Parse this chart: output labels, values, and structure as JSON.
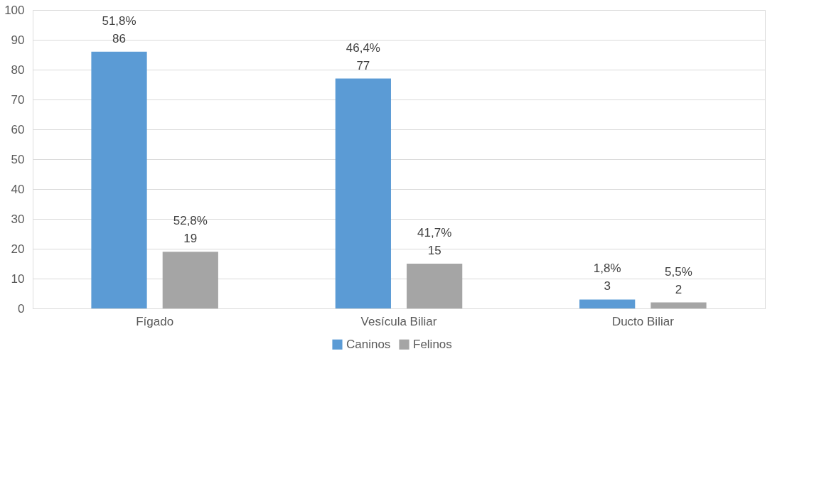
{
  "chart_data": {
    "type": "bar",
    "categories": [
      "Fígado",
      "Vesícula Biliar",
      "Ducto Biliar"
    ],
    "series": [
      {
        "name": "Caninos",
        "color": "#5b9bd5",
        "values": [
          86,
          77,
          3
        ],
        "value_labels": [
          "51,8%\n86",
          "46,4%\n77",
          "1,8%\n3"
        ]
      },
      {
        "name": "Felinos",
        "color": "#a5a5a5",
        "values": [
          19,
          15,
          2
        ],
        "value_labels": [
          "52,8%\n19",
          "41,7%\n15",
          "5,5%\n2"
        ]
      }
    ],
    "ylim": [
      0,
      100
    ],
    "yticks": [
      0,
      10,
      20,
      30,
      40,
      50,
      60,
      70,
      80,
      90,
      100
    ],
    "grid": "y",
    "legend": "bottom"
  }
}
